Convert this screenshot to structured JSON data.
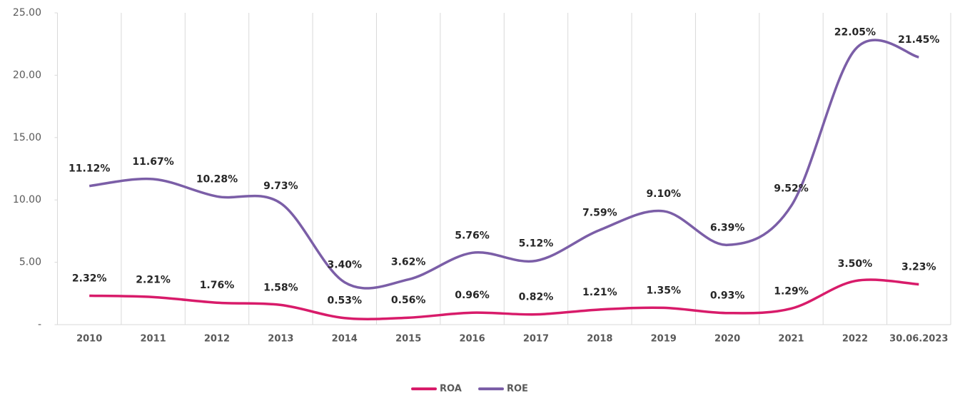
{
  "chart_data": {
    "type": "line",
    "categories": [
      "2010",
      "2011",
      "2012",
      "2013",
      "2014",
      "2015",
      "2016",
      "2017",
      "2018",
      "2019",
      "2020",
      "2021",
      "2022",
      "30.06.2023"
    ],
    "series": [
      {
        "name": "ROA",
        "color": "#d81b6a",
        "values": [
          2.32,
          2.21,
          1.76,
          1.58,
          0.53,
          0.56,
          0.96,
          0.82,
          1.21,
          1.35,
          0.93,
          1.29,
          3.5,
          3.23
        ],
        "value_labels": [
          "2.32%",
          "2.21%",
          "1.76%",
          "1.58%",
          "0.53%",
          "0.56%",
          "0.96%",
          "0.82%",
          "1.21%",
          "1.35%",
          "0.93%",
          "1.29%",
          "3.50%",
          "3.23%"
        ]
      },
      {
        "name": "ROE",
        "color": "#7b5ea7",
        "values": [
          11.12,
          11.67,
          10.28,
          9.73,
          3.4,
          3.62,
          5.76,
          5.12,
          7.59,
          9.1,
          6.39,
          9.52,
          22.05,
          21.45
        ],
        "value_labels": [
          "11.12%",
          "11.67%",
          "10.28%",
          "9.73%",
          "3.40%",
          "3.62%",
          "5.76%",
          "5.12%",
          "7.59%",
          "9.10%",
          "6.39%",
          "9.52%",
          "22.05%",
          "21.45%"
        ]
      }
    ],
    "ylim": [
      0,
      25
    ],
    "yticks": [
      {
        "value": 0,
        "label": "-"
      },
      {
        "value": 5,
        "label": "5.00"
      },
      {
        "value": 10,
        "label": "10.00"
      },
      {
        "value": 15,
        "label": "15.00"
      },
      {
        "value": 20,
        "label": "20.00"
      },
      {
        "value": 25,
        "label": "25.00"
      }
    ],
    "grid": true,
    "legend": "bottom"
  }
}
